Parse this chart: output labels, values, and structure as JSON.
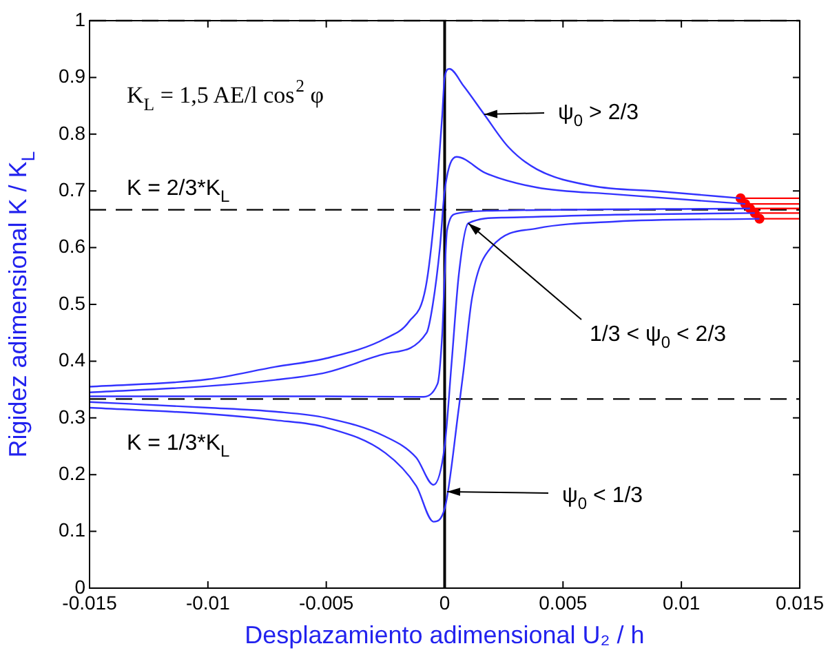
{
  "chart_data": {
    "type": "line",
    "xlabel": "Desplazamiento adimensional U₂ / h",
    "ylabel": "Rigidez adimensional K / K$_{L}$",
    "xlim": [
      -0.015,
      0.015
    ],
    "xticks": [
      -0.015,
      -0.01,
      -0.005,
      0,
      0.005,
      0.01,
      0.015
    ],
    "ylim": [
      0,
      1
    ],
    "yticks": [
      0,
      0.1,
      0.2,
      0.3,
      0.4,
      0.5,
      0.6,
      0.7,
      0.8,
      0.9,
      1
    ],
    "grid": false,
    "legend": false,
    "marker": "none",
    "line_style": "solid",
    "series": [
      {
        "color": "#3333ff",
        "x": [
          -0.015,
          -0.01,
          -0.00715,
          -0.005,
          -0.0025,
          -0.0015,
          -0.0008,
          -0.0004,
          -0.0001,
          0,
          0.0002,
          0.0008,
          0.00167,
          0.0027,
          0.0039,
          0.0062,
          0.0091,
          0.0125
        ],
        "values": [
          0.355,
          0.368,
          0.39,
          0.405,
          0.44,
          0.47,
          0.53,
          0.67,
          0.835,
          0.9,
          0.915,
          0.885,
          0.835,
          0.777,
          0.738,
          0.709,
          0.699,
          0.687
        ]
      },
      {
        "color": "#3333ff",
        "x": [
          -0.015,
          -0.01,
          -0.00715,
          -0.005,
          -0.0025,
          -0.00076,
          -0.0005,
          -0.0002,
          0,
          0.0005,
          0.00175,
          0.0039,
          0.0072,
          0.0127
        ],
        "values": [
          0.345,
          0.356,
          0.367,
          0.38,
          0.413,
          0.45,
          0.5,
          0.6,
          0.7,
          0.76,
          0.731,
          0.706,
          0.694,
          0.677
        ]
      },
      {
        "color": "#3333ff",
        "x": [
          -0.015,
          -0.005,
          -0.001,
          -0.0003,
          -0.0001,
          0,
          0.0001,
          0.0005,
          0.002,
          0.0129
        ],
        "values": [
          0.338,
          0.338,
          0.337,
          0.36,
          0.45,
          0.55,
          0.63,
          0.66,
          0.665,
          0.669
        ]
      },
      {
        "color": "#3333ff",
        "x": [
          -0.015,
          -0.01,
          -0.00715,
          -0.005,
          -0.0025,
          -0.0012,
          -0.00047,
          0,
          0.0003,
          0.0006,
          0.001,
          0.0025,
          0.0072,
          0.0131
        ],
        "values": [
          0.328,
          0.318,
          0.311,
          0.3,
          0.267,
          0.23,
          0.182,
          0.25,
          0.4,
          0.553,
          0.643,
          0.653,
          0.658,
          0.661
        ]
      },
      {
        "color": "#3333ff",
        "x": [
          -0.015,
          -0.01,
          -0.00715,
          -0.005,
          -0.0025,
          -0.0012,
          -0.00047,
          0,
          0.0006,
          0.0008,
          0.00116,
          0.002,
          0.0039,
          0.0072,
          0.0133
        ],
        "values": [
          0.318,
          0.307,
          0.296,
          0.283,
          0.238,
          0.18,
          0.117,
          0.14,
          0.318,
          0.384,
          0.512,
          0.602,
          0.634,
          0.646,
          0.651
        ]
      },
      {
        "color": "#ff0000",
        "x": [
          0.0125,
          0.015
        ],
        "values": [
          0.687,
          0.687
        ]
      },
      {
        "color": "#ff0000",
        "x": [
          0.0127,
          0.015
        ],
        "values": [
          0.677,
          0.677
        ]
      },
      {
        "color": "#ff0000",
        "x": [
          0.0129,
          0.015
        ],
        "values": [
          0.669,
          0.669
        ]
      },
      {
        "color": "#ff0000",
        "x": [
          0.0131,
          0.015
        ],
        "values": [
          0.661,
          0.661
        ]
      },
      {
        "color": "#ff0000",
        "x": [
          0.0133,
          0.015
        ],
        "values": [
          0.651,
          0.651
        ]
      },
      {
        "type": "scatter",
        "marker": "circle",
        "color": "#ff0000",
        "x": [
          0.0125,
          0.0127,
          0.0129,
          0.0131,
          0.0133
        ],
        "values": [
          0.687,
          0.677,
          0.669,
          0.661,
          0.651
        ]
      }
    ],
    "ref_lines": [
      {
        "axis": "y",
        "value": 1,
        "color": "#000000",
        "line_style": "dashed"
      },
      {
        "axis": "y",
        "value": 0.6667,
        "color": "#000000",
        "line_style": "dashed"
      },
      {
        "axis": "y",
        "value": 0.3333,
        "color": "#000000",
        "line_style": "dashed"
      },
      {
        "axis": "x",
        "value": 0,
        "color": "#000000",
        "line_style": "solid"
      }
    ],
    "annotations": [
      "K$_{L}$ = 1,5 AE/l cos$^{2}$ φ",
      "K = 2/3*K$_{L}$",
      "K = 1/3*K$_{L}$",
      {
        "text": "ψ$_{0}$ > 2/3",
        "x": 0.00167,
        "y": 0.835
      },
      {
        "text": "1/3 < ψ$_{0}$ < 2/3",
        "x": 0.001,
        "y": 0.643
      },
      {
        "text": "ψ$_{0}$ < 1/3",
        "x": 0.0001,
        "y": 0.17
      }
    ]
  }
}
